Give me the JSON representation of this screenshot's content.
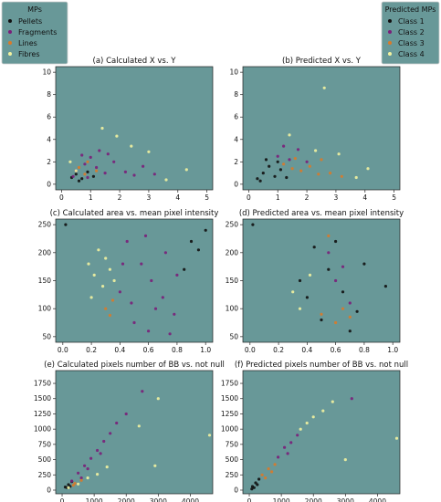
{
  "figure": {
    "legend_left": {
      "title": "MPs",
      "entries": [
        {
          "label": "Pellets",
          "color": "#111111"
        },
        {
          "label": "Fragments",
          "color": "#7a1f7a"
        },
        {
          "label": "Lines",
          "color": "#d87a2a"
        },
        {
          "label": "Fibres",
          "color": "#f2f2a0"
        }
      ]
    },
    "legend_right": {
      "title": "Predicted MPs",
      "entries": [
        {
          "label": "Class 1",
          "color": "#111111"
        },
        {
          "label": "Class 2",
          "color": "#7a1f7a"
        },
        {
          "label": "Class 3",
          "color": "#d87a2a"
        },
        {
          "label": "Class 4",
          "color": "#f2f2a0"
        }
      ]
    },
    "background_color": "#689898"
  },
  "chart_data": [
    {
      "type": "scatter",
      "title": "(a) Calculated X vs. Y",
      "xlim": [
        -0.2,
        5.2
      ],
      "ylim": [
        -0.5,
        10.5
      ],
      "xticks": [
        0,
        1,
        2,
        3,
        4,
        5
      ],
      "yticks": [
        0,
        2,
        4,
        6,
        8,
        10
      ],
      "series": [
        {
          "name": "Pellets",
          "color": "#111111",
          "points": [
            [
              0.35,
              0.6
            ],
            [
              0.5,
              0.9
            ],
            [
              0.7,
              0.5
            ],
            [
              0.9,
              1.1
            ],
            [
              1.1,
              0.7
            ],
            [
              0.6,
              0.3
            ]
          ]
        },
        {
          "name": "Fragments",
          "color": "#7a1f7a",
          "points": [
            [
              0.5,
              1.2
            ],
            [
              0.8,
              1.8
            ],
            [
              1.0,
              2.4
            ],
            [
              1.2,
              1.5
            ],
            [
              1.5,
              1.0
            ],
            [
              0.9,
              0.6
            ],
            [
              1.8,
              2.0
            ],
            [
              2.2,
              1.1
            ],
            [
              0.7,
              2.6
            ],
            [
              1.3,
              3.0
            ],
            [
              2.5,
              0.8
            ],
            [
              0.4,
              0.7
            ],
            [
              1.6,
              2.7
            ],
            [
              2.8,
              1.6
            ],
            [
              3.2,
              0.9
            ]
          ]
        },
        {
          "name": "Lines",
          "color": "#d87a2a",
          "points": [
            [
              0.6,
              1.5
            ],
            [
              0.9,
              2.0
            ],
            [
              1.2,
              1.2
            ],
            [
              0.8,
              0.9
            ]
          ]
        },
        {
          "name": "Fibres",
          "color": "#f2f2a0",
          "points": [
            [
              0.3,
              2.0
            ],
            [
              1.9,
              4.3
            ],
            [
              2.4,
              3.4
            ],
            [
              3.0,
              2.9
            ],
            [
              4.3,
              1.3
            ],
            [
              1.4,
              5.0
            ],
            [
              0.5,
              1.2
            ],
            [
              3.6,
              0.4
            ]
          ]
        }
      ]
    },
    {
      "type": "scatter",
      "title": "(b) Predicted X vs. Y",
      "xlim": [
        -0.2,
        5.2
      ],
      "ylim": [
        -0.5,
        10.5
      ],
      "xticks": [
        0,
        1,
        2,
        3,
        4,
        5
      ],
      "yticks": [
        0,
        2,
        4,
        6,
        8,
        10
      ],
      "series": [
        {
          "name": "Class 1",
          "color": "#111111",
          "points": [
            [
              0.3,
              0.5
            ],
            [
              0.5,
              1.0
            ],
            [
              0.7,
              1.6
            ],
            [
              0.9,
              0.7
            ],
            [
              1.1,
              1.3
            ],
            [
              0.6,
              2.2
            ],
            [
              1.3,
              0.6
            ],
            [
              0.4,
              0.3
            ],
            [
              1.0,
              2.0
            ]
          ]
        },
        {
          "name": "Class 2",
          "color": "#7a1f7a",
          "points": [
            [
              1.0,
              2.5
            ],
            [
              1.4,
              2.2
            ],
            [
              1.7,
              3.1
            ],
            [
              2.0,
              2.0
            ],
            [
              1.2,
              3.4
            ]
          ]
        },
        {
          "name": "Class 3",
          "color": "#d87a2a",
          "points": [
            [
              1.2,
              1.8
            ],
            [
              1.5,
              1.4
            ],
            [
              1.8,
              1.2
            ],
            [
              2.1,
              1.6
            ],
            [
              2.4,
              0.9
            ],
            [
              2.8,
              1.0
            ],
            [
              1.6,
              2.3
            ],
            [
              3.2,
              0.7
            ],
            [
              2.5,
              2.2
            ]
          ]
        },
        {
          "name": "Class 4",
          "color": "#f2f2a0",
          "points": [
            [
              1.4,
              4.4
            ],
            [
              2.3,
              3.0
            ],
            [
              3.1,
              2.7
            ],
            [
              4.1,
              1.4
            ],
            [
              2.6,
              8.6
            ],
            [
              3.7,
              0.6
            ]
          ]
        }
      ]
    },
    {
      "type": "scatter",
      "title": "(c) Calculated area vs. mean pixel intensity",
      "xlim": [
        -0.05,
        1.05
      ],
      "ylim": [
        40,
        260
      ],
      "xticks": [
        0.0,
        0.2,
        0.4,
        0.6,
        0.8,
        1.0
      ],
      "yticks": [
        50,
        100,
        150,
        200,
        250
      ],
      "series": [
        {
          "name": "Pellets",
          "color": "#111111",
          "points": [
            [
              0.02,
              250
            ],
            [
              0.9,
              220
            ],
            [
              0.85,
              170
            ],
            [
              0.95,
              205
            ],
            [
              1.0,
              240
            ]
          ]
        },
        {
          "name": "Fragments",
          "color": "#7a1f7a",
          "points": [
            [
              0.45,
              220
            ],
            [
              0.55,
              180
            ],
            [
              0.62,
              150
            ],
            [
              0.7,
              120
            ],
            [
              0.78,
              90
            ],
            [
              0.5,
              75
            ],
            [
              0.6,
              60
            ],
            [
              0.72,
              200
            ],
            [
              0.4,
              130
            ],
            [
              0.65,
              100
            ],
            [
              0.8,
              160
            ],
            [
              0.48,
              110
            ],
            [
              0.58,
              230
            ],
            [
              0.75,
              55
            ],
            [
              0.42,
              180
            ]
          ]
        },
        {
          "name": "Lines",
          "color": "#d87a2a",
          "points": [
            [
              0.3,
              100
            ],
            [
              0.33,
              88
            ],
            [
              0.35,
              115
            ]
          ]
        },
        {
          "name": "Fibres",
          "color": "#f2f2a0",
          "points": [
            [
              0.18,
              180
            ],
            [
              0.22,
              160
            ],
            [
              0.25,
              205
            ],
            [
              0.28,
              140
            ],
            [
              0.3,
              190
            ],
            [
              0.2,
              120
            ],
            [
              0.33,
              170
            ],
            [
              0.36,
              150
            ]
          ]
        }
      ]
    },
    {
      "type": "scatter",
      "title": "(d) Predicted area vs. mean pixel intensity",
      "xlim": [
        -0.05,
        1.05
      ],
      "ylim": [
        40,
        260
      ],
      "xticks": [
        0.0,
        0.2,
        0.4,
        0.6,
        0.8,
        1.0
      ],
      "yticks": [
        50,
        100,
        150,
        200,
        250
      ],
      "series": [
        {
          "name": "Class 1",
          "color": "#111111",
          "points": [
            [
              0.45,
              210
            ],
            [
              0.55,
              170
            ],
            [
              0.65,
              130
            ],
            [
              0.75,
              95
            ],
            [
              0.5,
              80
            ],
            [
              0.6,
              220
            ],
            [
              0.7,
              60
            ],
            [
              0.4,
              120
            ],
            [
              0.8,
              180
            ],
            [
              0.35,
              150
            ],
            [
              0.02,
              250
            ],
            [
              0.95,
              140
            ]
          ]
        },
        {
          "name": "Class 2",
          "color": "#7a1f7a",
          "points": [
            [
              0.55,
              200
            ],
            [
              0.6,
              150
            ],
            [
              0.65,
              175
            ],
            [
              0.7,
              110
            ]
          ]
        },
        {
          "name": "Class 3",
          "color": "#d87a2a",
          "points": [
            [
              0.5,
              90
            ],
            [
              0.6,
              75
            ],
            [
              0.7,
              85
            ],
            [
              0.65,
              100
            ],
            [
              0.55,
              230
            ]
          ]
        },
        {
          "name": "Class 4",
          "color": "#f2f2a0",
          "points": [
            [
              0.35,
              100
            ],
            [
              0.42,
              160
            ],
            [
              0.3,
              130
            ]
          ]
        }
      ]
    },
    {
      "type": "scatter",
      "title": "(e) Calculated pixels number of BB vs. not null",
      "xlim": [
        -200,
        4700
      ],
      "ylim": [
        -60,
        1960
      ],
      "xticks": [
        0,
        1000,
        2000,
        3000,
        4000
      ],
      "yticks": [
        0,
        250,
        500,
        750,
        1000,
        1250,
        1500,
        1750
      ],
      "series": [
        {
          "name": "Pellets",
          "color": "#111111",
          "points": [
            [
              100,
              50
            ],
            [
              200,
              90
            ],
            [
              300,
              140
            ],
            [
              150,
              40
            ],
            [
              250,
              60
            ]
          ]
        },
        {
          "name": "Fragments",
          "color": "#7a1f7a",
          "points": [
            [
              300,
              150
            ],
            [
              500,
              280
            ],
            [
              700,
              400
            ],
            [
              900,
              520
            ],
            [
              1100,
              650
            ],
            [
              1300,
              800
            ],
            [
              1500,
              930
            ],
            [
              800,
              350
            ],
            [
              1200,
              600
            ],
            [
              1700,
              1100
            ],
            [
              2500,
              1620
            ],
            [
              2000,
              1250
            ],
            [
              600,
              200
            ]
          ]
        },
        {
          "name": "Lines",
          "color": "#d87a2a",
          "points": [
            [
              400,
              110
            ],
            [
              600,
              160
            ],
            [
              350,
              80
            ]
          ]
        },
        {
          "name": "Fibres",
          "color": "#f2f2a0",
          "points": [
            [
              200,
              40
            ],
            [
              500,
              100
            ],
            [
              800,
              200
            ],
            [
              1100,
              260
            ],
            [
              1400,
              380
            ],
            [
              2900,
              400
            ],
            [
              3000,
              1500
            ],
            [
              4600,
              900
            ],
            [
              2400,
              1050
            ]
          ]
        }
      ]
    },
    {
      "type": "scatter",
      "title": "(f) Predicted pixels number of BB vs. not null",
      "xlim": [
        -200,
        4700
      ],
      "ylim": [
        -60,
        1960
      ],
      "xticks": [
        0,
        1000,
        2000,
        3000,
        4000
      ],
      "yticks": [
        0,
        250,
        500,
        750,
        1000,
        1250,
        1500,
        1750
      ],
      "series": [
        {
          "name": "Class 1",
          "color": "#111111",
          "points": [
            [
              100,
              60
            ],
            [
              200,
              120
            ],
            [
              300,
              180
            ],
            [
              150,
              40
            ],
            [
              250,
              90
            ],
            [
              80,
              20
            ]
          ]
        },
        {
          "name": "Class 2",
          "color": "#7a1f7a",
          "points": [
            [
              900,
              540
            ],
            [
              1100,
              700
            ],
            [
              1300,
              780
            ],
            [
              1500,
              900
            ],
            [
              1200,
              600
            ],
            [
              3200,
              1500
            ]
          ]
        },
        {
          "name": "Class 3",
          "color": "#d87a2a",
          "points": [
            [
              400,
              250
            ],
            [
              600,
              350
            ],
            [
              800,
              420
            ],
            [
              700,
              300
            ],
            [
              500,
              200
            ]
          ]
        },
        {
          "name": "Class 4",
          "color": "#f2f2a0",
          "points": [
            [
              1600,
              1000
            ],
            [
              2000,
              1200
            ],
            [
              2300,
              1300
            ],
            [
              1800,
              1100
            ],
            [
              3000,
              500
            ],
            [
              4600,
              850
            ],
            [
              2600,
              1450
            ]
          ]
        }
      ]
    }
  ]
}
